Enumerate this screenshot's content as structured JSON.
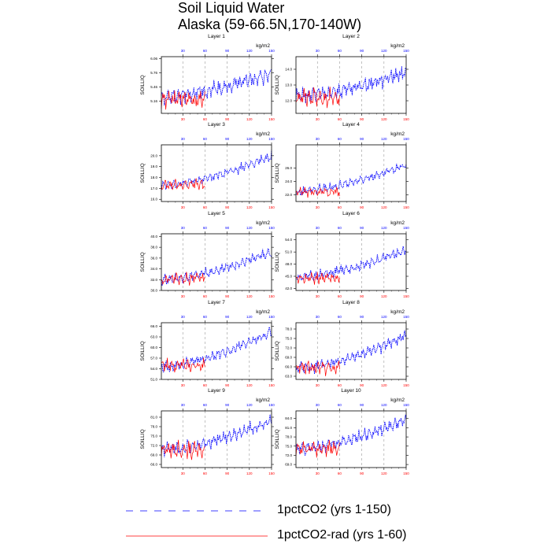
{
  "title_line1": "Soil Liquid Water",
  "title_line2": "Alaska (59-66.5N,170-140W)",
  "units": "kg/m2",
  "ylabel": "SOILLIQ",
  "colors": {
    "blue": "#0000ff",
    "red": "#ff0000",
    "black": "#000000",
    "grid": "#999999"
  },
  "x_ticks": [
    30,
    60,
    90,
    120,
    150
  ],
  "legend": [
    {
      "label": "1pctCO2 (yrs 1-150)",
      "color": "#0000ff",
      "style": "dashed"
    },
    {
      "label": "1pctCO2-rad (yrs 1-60)",
      "color": "#ff0000",
      "style": "solid"
    }
  ],
  "chart_data": [
    {
      "type": "line",
      "title": "Layer 1",
      "xlim": [
        1,
        150
      ],
      "ylim": [
        4.9,
        6.1
      ],
      "yticks": [
        "4.86",
        "5.16",
        "5.46",
        "5.76",
        "6.06"
      ],
      "series": [
        {
          "name": "1pctCO2 (yrs 1-150)",
          "years": [
            1,
            150
          ],
          "start": 5.25,
          "end": 5.75,
          "amp": 0.18
        },
        {
          "name": "1pctCO2-rad (yrs 1-60)",
          "years": [
            1,
            60
          ],
          "start": 5.2,
          "end": 5.2,
          "amp": 0.2
        }
      ]
    },
    {
      "type": "line",
      "title": "Layer 2",
      "xlim": [
        1,
        150
      ],
      "ylim": [
        11.2,
        14.8
      ],
      "yticks": [
        "12.0",
        "13.0",
        "14.0"
      ],
      "series": [
        {
          "name": "1pctCO2 (yrs 1-150)",
          "years": [
            1,
            150
          ],
          "start": 12.3,
          "end": 13.8,
          "amp": 0.5
        },
        {
          "name": "1pctCO2-rad (yrs 1-60)",
          "years": [
            1,
            60
          ],
          "start": 12.2,
          "end": 12.2,
          "amp": 0.6
        }
      ]
    },
    {
      "type": "line",
      "title": "Layer 3",
      "xlim": [
        1,
        150
      ],
      "ylim": [
        15.8,
        21.0
      ],
      "yticks": [
        "16.0",
        "17.0",
        "18.0",
        "19.0",
        "20.0"
      ],
      "series": [
        {
          "name": "1pctCO2 (yrs 1-150)",
          "years": [
            1,
            150
          ],
          "start": 17.3,
          "end": 20.0,
          "amp": 0.45
        },
        {
          "name": "1pctCO2-rad (yrs 1-60)",
          "years": [
            1,
            60
          ],
          "start": 17.3,
          "end": 17.4,
          "amp": 0.5
        }
      ]
    },
    {
      "type": "line",
      "title": "Layer 4",
      "xlim": [
        1,
        150
      ],
      "ylim": [
        21.0,
        29.5
      ],
      "yticks": [
        "22.0",
        "24.0",
        "26.0"
      ],
      "series": [
        {
          "name": "1pctCO2 (yrs 1-150)",
          "years": [
            1,
            150
          ],
          "start": 22.5,
          "end": 26.5,
          "amp": 0.7
        },
        {
          "name": "1pctCO2-rad (yrs 1-60)",
          "years": [
            1,
            60
          ],
          "start": 22.4,
          "end": 22.4,
          "amp": 0.7
        }
      ]
    },
    {
      "type": "line",
      "title": "Layer 5",
      "xlim": [
        1,
        150
      ],
      "ylim": [
        30.0,
        40.5
      ],
      "yticks": [
        "30.0",
        "32.0",
        "34.0",
        "36.0",
        "38.0",
        "40.0"
      ],
      "series": [
        {
          "name": "1pctCO2 (yrs 1-150)",
          "years": [
            1,
            150
          ],
          "start": 32.0,
          "end": 37.2,
          "amp": 1.0
        },
        {
          "name": "1pctCO2-rad (yrs 1-60)",
          "years": [
            1,
            60
          ],
          "start": 32.0,
          "end": 32.3,
          "amp": 1.1
        }
      ]
    },
    {
      "type": "line",
      "title": "Layer 6",
      "xlim": [
        1,
        150
      ],
      "ylim": [
        41.5,
        55.5
      ],
      "yticks": [
        "42.0",
        "45.0",
        "48.0",
        "51.0",
        "54.0"
      ],
      "series": [
        {
          "name": "1pctCO2 (yrs 1-150)",
          "years": [
            1,
            150
          ],
          "start": 44.8,
          "end": 51.5,
          "amp": 1.3
        },
        {
          "name": "1pctCO2-rad (yrs 1-60)",
          "years": [
            1,
            60
          ],
          "start": 44.5,
          "end": 44.5,
          "amp": 1.5
        }
      ]
    },
    {
      "type": "line",
      "title": "Layer 7",
      "xlim": [
        1,
        150
      ],
      "ylim": [
        51.0,
        67.0
      ],
      "yticks": [
        "51.0",
        "54.0",
        "57.0",
        "60.0",
        "63.0",
        "66.0"
      ],
      "series": [
        {
          "name": "1pctCO2 (yrs 1-150)",
          "years": [
            1,
            150
          ],
          "start": 54.5,
          "end": 64.5,
          "amp": 1.6
        },
        {
          "name": "1pctCO2-rad (yrs 1-60)",
          "years": [
            1,
            60
          ],
          "start": 55.0,
          "end": 55.0,
          "amp": 1.8
        }
      ]
    },
    {
      "type": "line",
      "title": "Layer 8",
      "xlim": [
        1,
        150
      ],
      "ylim": [
        62.0,
        80.0
      ],
      "yticks": [
        "63.0",
        "66.0",
        "69.0",
        "72.0",
        "75.0",
        "78.0"
      ],
      "series": [
        {
          "name": "1pctCO2 (yrs 1-150)",
          "years": [
            1,
            150
          ],
          "start": 65.5,
          "end": 76.0,
          "amp": 2.0
        },
        {
          "name": "1pctCO2-rad (yrs 1-60)",
          "years": [
            1,
            60
          ],
          "start": 66.0,
          "end": 65.5,
          "amp": 2.2
        }
      ]
    },
    {
      "type": "line",
      "title": "Layer 9",
      "xlim": [
        1,
        150
      ],
      "ylim": [
        65.0,
        83.0
      ],
      "yticks": [
        "66.0",
        "69.0",
        "72.0",
        "75.0",
        "78.0",
        "81.0"
      ],
      "series": [
        {
          "name": "1pctCO2 (yrs 1-150)",
          "years": [
            1,
            150
          ],
          "start": 70.5,
          "end": 80.0,
          "amp": 2.3
        },
        {
          "name": "1pctCO2-rad (yrs 1-60)",
          "years": [
            1,
            60
          ],
          "start": 70.5,
          "end": 70.5,
          "amp": 2.8
        }
      ]
    },
    {
      "type": "line",
      "title": "Layer 10",
      "xlim": [
        1,
        150
      ],
      "ylim": [
        68.0,
        86.5
      ],
      "yticks": [
        "69.0",
        "72.0",
        "75.0",
        "78.0",
        "81.0",
        "84.0"
      ],
      "series": [
        {
          "name": "1pctCO2 (yrs 1-150)",
          "years": [
            1,
            150
          ],
          "start": 74.0,
          "end": 83.5,
          "amp": 2.2
        },
        {
          "name": "1pctCO2-rad (yrs 1-60)",
          "years": [
            1,
            60
          ],
          "start": 74.0,
          "end": 74.5,
          "amp": 2.6
        }
      ]
    }
  ]
}
